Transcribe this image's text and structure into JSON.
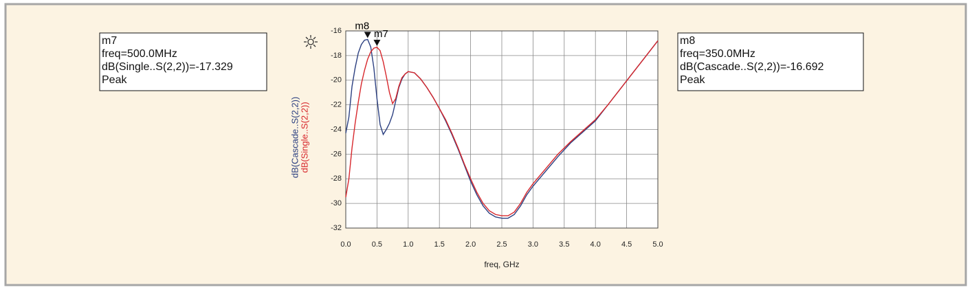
{
  "chart_data": {
    "type": "line",
    "x_label": "freq, GHz",
    "xlim": [
      0,
      5
    ],
    "ylim": [
      -32,
      -16
    ],
    "xticks": [
      {
        "value": 0,
        "label": "0.0"
      },
      0.5,
      {
        "value": 1,
        "label": "1.0"
      },
      1.5,
      {
        "value": 2,
        "label": "2.0"
      },
      2.5,
      {
        "value": 3,
        "label": "3.0"
      },
      3.5,
      {
        "value": 4,
        "label": "4.0"
      },
      4.5,
      {
        "value": 5,
        "label": "5.0"
      }
    ],
    "yticks": [
      -32,
      -30,
      -28,
      -26,
      -24,
      -22,
      -20,
      -18,
      -16
    ],
    "grid": true,
    "x": [
      0,
      0.05,
      0.1,
      0.15,
      0.2,
      0.25,
      0.3,
      0.35,
      0.4,
      0.45,
      0.5,
      0.55,
      0.6,
      0.65,
      0.7,
      0.75,
      0.8,
      0.85,
      0.9,
      0.95,
      1.0,
      1.1,
      1.2,
      1.3,
      1.4,
      1.5,
      1.6,
      1.7,
      1.8,
      1.9,
      2.0,
      2.1,
      2.2,
      2.3,
      2.4,
      2.5,
      2.6,
      2.7,
      2.8,
      2.9,
      3.0,
      3.2,
      3.4,
      3.6,
      3.8,
      4.0,
      4.2,
      4.4,
      4.6,
      4.8,
      5.0
    ],
    "series": [
      {
        "name": "dB(Cascade..S(2,2))",
        "color": "#2b3f80",
        "values": [
          -24.3,
          -23.0,
          -20.5,
          -19.0,
          -17.8,
          -17.1,
          -16.75,
          -16.692,
          -17.3,
          -19.0,
          -21.5,
          -23.6,
          -24.4,
          -24.0,
          -23.5,
          -22.8,
          -21.7,
          -20.6,
          -19.9,
          -19.5,
          -19.3,
          -19.4,
          -19.9,
          -20.6,
          -21.4,
          -22.3,
          -23.3,
          -24.4,
          -25.6,
          -26.9,
          -28.2,
          -29.3,
          -30.2,
          -30.8,
          -31.1,
          -31.2,
          -31.2,
          -30.9,
          -30.2,
          -29.3,
          -28.6,
          -27.4,
          -26.2,
          -25.1,
          -24.2,
          -23.3,
          -22.0,
          -20.7,
          -19.4,
          -18.1,
          -16.8
        ]
      },
      {
        "name": "dB(Single..S(2,2))",
        "color": "#d7262b",
        "values": [
          -29.5,
          -28.0,
          -25.5,
          -23.5,
          -21.8,
          -20.3,
          -19.2,
          -18.3,
          -17.7,
          -17.4,
          -17.329,
          -17.6,
          -18.5,
          -19.7,
          -21.0,
          -21.9,
          -21.5,
          -20.5,
          -19.8,
          -19.5,
          -19.3,
          -19.4,
          -19.9,
          -20.6,
          -21.4,
          -22.3,
          -23.2,
          -24.3,
          -25.5,
          -26.8,
          -28.0,
          -29.1,
          -30.0,
          -30.6,
          -30.9,
          -31.0,
          -31.0,
          -30.7,
          -30.0,
          -29.1,
          -28.4,
          -27.2,
          -26.0,
          -25.0,
          -24.1,
          -23.2,
          -22.0,
          -20.7,
          -19.4,
          -18.1,
          -16.8
        ]
      }
    ],
    "markers": [
      {
        "name": "m7",
        "x": 0.5,
        "y": -17.329,
        "readout": [
          "freq=500.0MHz",
          "dB(Single..S(2,2))=-17.329",
          "Peak"
        ]
      },
      {
        "name": "m8",
        "x": 0.35,
        "y": -16.692,
        "readout": [
          "freq=350.0MHz",
          "dB(Cascade..S(2,2))=-16.692",
          "Peak"
        ]
      }
    ]
  }
}
